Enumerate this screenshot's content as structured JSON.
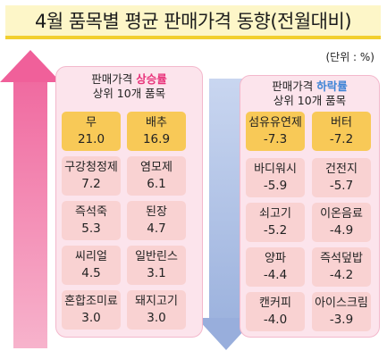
{
  "title": "4월 품목별 평균 판매가격 동향(전월대비)",
  "unit": "(단위 : %)",
  "colors": {
    "up": "#e8327a",
    "down": "#3e84d6",
    "top_cell": "#f8c957",
    "cell": "#f9d2d2"
  },
  "up_panel": {
    "head_prefix": "판매가격",
    "head_highlight": "상승률",
    "head_line2": "상위 10개 품목",
    "items": [
      {
        "name": "무",
        "value": "21.0"
      },
      {
        "name": "배추",
        "value": "16.9"
      },
      {
        "name": "구강청정제",
        "value": "7.2"
      },
      {
        "name": "염모제",
        "value": "6.1"
      },
      {
        "name": "즉석죽",
        "value": "5.3"
      },
      {
        "name": "된장",
        "value": "4.7"
      },
      {
        "name": "씨리얼",
        "value": "4.5"
      },
      {
        "name": "일반린스",
        "value": "3.1"
      },
      {
        "name": "혼합조미료",
        "value": "3.0"
      },
      {
        "name": "돼지고기",
        "value": "3.0"
      }
    ]
  },
  "down_panel": {
    "head_prefix": "판매가격",
    "head_highlight": "하락률",
    "head_line2": "상위 10개 품목",
    "items": [
      {
        "name": "섬유유연제",
        "value": "-7.3"
      },
      {
        "name": "버터",
        "value": "-7.2"
      },
      {
        "name": "바디워시",
        "value": "-5.9"
      },
      {
        "name": "건전지",
        "value": "-5.7"
      },
      {
        "name": "쇠고기",
        "value": "-5.2"
      },
      {
        "name": "이온음료",
        "value": "-4.9"
      },
      {
        "name": "양파",
        "value": "-4.4"
      },
      {
        "name": "즉석덮밥",
        "value": "-4.2"
      },
      {
        "name": "캔커피",
        "value": "-4.0"
      },
      {
        "name": "아이스크림",
        "value": "-3.9"
      }
    ]
  }
}
